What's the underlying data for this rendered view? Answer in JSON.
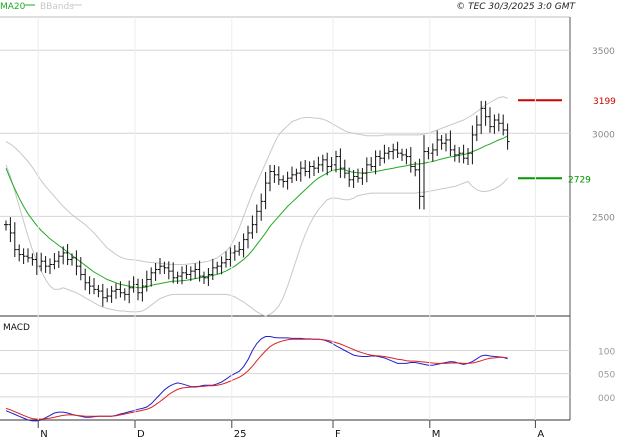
{
  "header": {
    "legend": [
      {
        "label": "MA20",
        "color": "#22aa22"
      },
      {
        "label": "BBands",
        "color": "#c8c8c8"
      }
    ],
    "copyright": "© TEC 30/3/2025 3:0 GMT"
  },
  "colors": {
    "price": "#111111",
    "ma20": "#22aa22",
    "bbands": "#c8c8c8",
    "macd": "#2020cc",
    "signal": "#dd2222",
    "resistance": "#cc0000",
    "support": "#009900",
    "grid": "#d6d6d6",
    "axis": "#444444"
  },
  "chart_data": [
    {
      "type": "ohlc",
      "panel": "price",
      "ylim": [
        1900,
        3700
      ],
      "yticks": [
        {
          "value": 3500,
          "label": "3500"
        },
        {
          "value": 3000,
          "label": "3000"
        },
        {
          "value": 2500,
          "label": "2500"
        }
      ],
      "xticks": [
        {
          "index": 8,
          "label": "N"
        },
        {
          "index": 30,
          "label": "D"
        },
        {
          "index": 52,
          "label": "25"
        },
        {
          "index": 75,
          "label": "F"
        },
        {
          "index": 97,
          "label": "M"
        },
        {
          "index": 121,
          "label": "A"
        }
      ],
      "levels": [
        {
          "name": "resistance",
          "value": 3199,
          "label": "3199"
        },
        {
          "name": "support",
          "value": 2729,
          "label": "2729"
        }
      ],
      "close": [
        2450,
        2400,
        2300,
        2270,
        2260,
        2250,
        2240,
        2200,
        2230,
        2200,
        2210,
        2230,
        2260,
        2280,
        2240,
        2250,
        2200,
        2150,
        2100,
        2080,
        2060,
        2050,
        2010,
        2020,
        2050,
        2060,
        2040,
        2030,
        2070,
        2090,
        2040,
        2080,
        2120,
        2160,
        2180,
        2200,
        2190,
        2170,
        2130,
        2140,
        2160,
        2150,
        2170,
        2180,
        2140,
        2130,
        2150,
        2190,
        2200,
        2220,
        2240,
        2280,
        2290,
        2300,
        2360,
        2400,
        2450,
        2530,
        2590,
        2700,
        2770,
        2750,
        2720,
        2710,
        2730,
        2750,
        2760,
        2790,
        2770,
        2800,
        2790,
        2810,
        2840,
        2800,
        2810,
        2860,
        2790,
        2760,
        2720,
        2740,
        2730,
        2760,
        2810,
        2800,
        2860,
        2850,
        2880,
        2890,
        2900,
        2880,
        2870,
        2860,
        2800,
        2780,
        2620,
        2890,
        2880,
        2900,
        2960,
        2940,
        2960,
        2900,
        2870,
        2880,
        2850,
        2880,
        2990,
        3050,
        3150,
        3100,
        3040,
        3080,
        3060,
        3020,
        2950
      ],
      "ma20": [
        2790,
        2725,
        2665,
        2610,
        2560,
        2515,
        2480,
        2445,
        2415,
        2390,
        2365,
        2345,
        2325,
        2305,
        2285,
        2265,
        2245,
        2225,
        2205,
        2185,
        2165,
        2150,
        2135,
        2120,
        2110,
        2100,
        2090,
        2085,
        2080,
        2075,
        2070,
        2070,
        2075,
        2085,
        2090,
        2095,
        2100,
        2105,
        2110,
        2110,
        2112,
        2115,
        2120,
        2125,
        2130,
        2135,
        2140,
        2145,
        2150,
        2160,
        2170,
        2185,
        2200,
        2220,
        2240,
        2265,
        2295,
        2330,
        2365,
        2400,
        2440,
        2470,
        2500,
        2530,
        2560,
        2585,
        2610,
        2635,
        2660,
        2685,
        2710,
        2730,
        2745,
        2760,
        2775,
        2780,
        2785,
        2780,
        2770,
        2765,
        2762,
        2760,
        2762,
        2765,
        2770,
        2775,
        2780,
        2785,
        2790,
        2795,
        2800,
        2805,
        2810,
        2815,
        2815,
        2820,
        2825,
        2830,
        2838,
        2845,
        2852,
        2858,
        2862,
        2868,
        2872,
        2878,
        2890,
        2900,
        2912,
        2925,
        2935,
        2948,
        2960,
        2970,
        2985
      ],
      "bb_upper": [
        2950,
        2935,
        2915,
        2890,
        2860,
        2830,
        2795,
        2755,
        2715,
        2680,
        2650,
        2620,
        2590,
        2560,
        2535,
        2510,
        2490,
        2470,
        2450,
        2425,
        2400,
        2370,
        2340,
        2310,
        2290,
        2270,
        2255,
        2245,
        2240,
        2238,
        2235,
        2230,
        2225,
        2222,
        2220,
        2218,
        2215,
        2212,
        2210,
        2210,
        2210,
        2212,
        2215,
        2218,
        2220,
        2225,
        2230,
        2240,
        2250,
        2270,
        2290,
        2320,
        2370,
        2430,
        2500,
        2570,
        2640,
        2700,
        2760,
        2820,
        2880,
        2940,
        2990,
        3020,
        3045,
        3070,
        3080,
        3090,
        3095,
        3095,
        3092,
        3090,
        3085,
        3075,
        3060,
        3045,
        3030,
        3015,
        3005,
        3000,
        2995,
        2990,
        2985,
        2985,
        2985,
        2985,
        2990,
        2990,
        2990,
        2990,
        2990,
        2990,
        2990,
        2990,
        2990,
        2995,
        3000,
        3010,
        3020,
        3030,
        3040,
        3050,
        3060,
        3070,
        3080,
        3095,
        3110,
        3130,
        3150,
        3170,
        3185,
        3200,
        3215,
        3220,
        3210
      ],
      "bb_lower": [
        2810,
        2740,
        2650,
        2560,
        2470,
        2380,
        2300,
        2230,
        2170,
        2120,
        2080,
        2060,
        2060,
        2070,
        2060,
        2050,
        2040,
        2025,
        2010,
        1995,
        1980,
        1965,
        1955,
        1945,
        1940,
        1935,
        1930,
        1930,
        1925,
        1925,
        1925,
        1930,
        1945,
        1965,
        1985,
        2005,
        2015,
        2025,
        2030,
        2030,
        2030,
        2030,
        2030,
        2030,
        2030,
        2030,
        2030,
        2030,
        2030,
        2030,
        2030,
        2025,
        2015,
        2000,
        1985,
        1965,
        1945,
        1925,
        1910,
        1900,
        1910,
        1930,
        1960,
        2010,
        2080,
        2160,
        2240,
        2320,
        2390,
        2450,
        2500,
        2540,
        2570,
        2600,
        2610,
        2610,
        2605,
        2600,
        2600,
        2610,
        2625,
        2630,
        2635,
        2640,
        2640,
        2640,
        2640,
        2640,
        2640,
        2640,
        2640,
        2640,
        2640,
        2640,
        2645,
        2645,
        2650,
        2655,
        2660,
        2665,
        2670,
        2675,
        2680,
        2690,
        2700,
        2710,
        2680,
        2660,
        2650,
        2650,
        2655,
        2665,
        2680,
        2700,
        2730
      ]
    },
    {
      "type": "line",
      "panel": "macd",
      "title": "MACD",
      "ylim": [
        -50,
        170
      ],
      "yticks": [
        {
          "value": 100,
          "label": "100"
        },
        {
          "value": 50,
          "label": "050"
        },
        {
          "value": 0,
          "label": "000"
        }
      ],
      "series": [
        {
          "name": "macd",
          "values": [
            -30,
            -34,
            -38,
            -42,
            -46,
            -50,
            -52,
            -52,
            -50,
            -45,
            -40,
            -35,
            -33,
            -33,
            -35,
            -38,
            -40,
            -42,
            -44,
            -44,
            -43,
            -42,
            -42,
            -42,
            -42,
            -40,
            -37,
            -35,
            -32,
            -30,
            -27,
            -25,
            -22,
            -15,
            -5,
            5,
            15,
            22,
            27,
            30,
            28,
            25,
            22,
            22,
            23,
            25,
            25,
            25,
            28,
            32,
            38,
            45,
            50,
            55,
            65,
            80,
            100,
            115,
            125,
            130,
            130,
            128,
            127,
            127,
            127,
            126,
            126,
            126,
            125,
            125,
            124,
            124,
            123,
            120,
            116,
            110,
            105,
            100,
            95,
            90,
            88,
            87,
            87,
            88,
            88,
            86,
            84,
            80,
            76,
            72,
            72,
            72,
            74,
            74,
            72,
            70,
            68,
            68,
            70,
            72,
            74,
            76,
            75,
            72,
            70,
            72,
            76,
            82,
            88,
            90,
            88,
            87,
            86,
            85,
            82
          ]
        },
        {
          "name": "signal",
          "values": [
            -25,
            -28,
            -32,
            -36,
            -40,
            -44,
            -47,
            -48,
            -48,
            -47,
            -46,
            -44,
            -42,
            -40,
            -39,
            -39,
            -40,
            -41,
            -42,
            -42,
            -42,
            -42,
            -42,
            -42,
            -42,
            -41,
            -39,
            -37,
            -35,
            -33,
            -31,
            -29,
            -27,
            -23,
            -17,
            -10,
            -3,
            5,
            11,
            16,
            19,
            20,
            21,
            21,
            22,
            23,
            24,
            24,
            25,
            27,
            30,
            34,
            38,
            42,
            48,
            56,
            66,
            78,
            89,
            99,
            108,
            114,
            118,
            121,
            123,
            124,
            124,
            124,
            124,
            124,
            124,
            124,
            123,
            122,
            120,
            117,
            114,
            110,
            106,
            102,
            98,
            95,
            92,
            90,
            89,
            88,
            87,
            85,
            83,
            81,
            80,
            78,
            77,
            77,
            76,
            75,
            74,
            73,
            72,
            72,
            72,
            73,
            73,
            73,
            72,
            72,
            73,
            75,
            78,
            81,
            83,
            84,
            85,
            85,
            84
          ]
        }
      ]
    }
  ]
}
